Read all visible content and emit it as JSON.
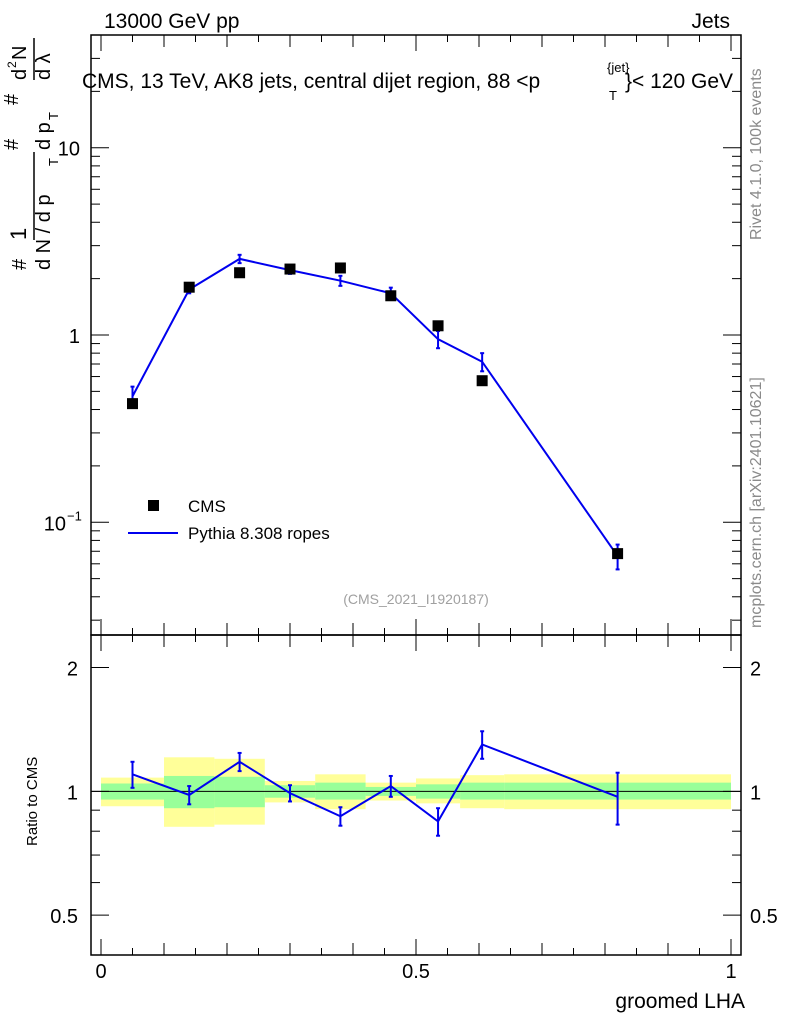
{
  "header": {
    "energy": "13000 GeV pp",
    "category": "Jets"
  },
  "side_labels": {
    "rivet": "Rivet 4.1.0,  100k events",
    "mcplots": "mcplots.cern.ch [arXiv:2401.10621]"
  },
  "chart_data": {
    "type": "line",
    "title": "CMS, 13 TeV, AK8 jets, central dijet region, 88 < p_T^{jet} < 120 GeV",
    "title_parts": {
      "main": "CMS, 13 TeV, AK8 jets, central dijet region, 88 <p",
      "sup": "{jet}",
      "sub": "T",
      "tail": "}< 120 GeV"
    },
    "analysis_id": "(CMS_2021_I1920187)",
    "xlabel": "groomed LHA",
    "ylabel": "1/dN/dp_T  d²N/dp_T dλ",
    "ylabel_parts": {
      "a": "#",
      "b": "1",
      "c": "d N / d p",
      "d": "T",
      "e": "#",
      "f": "d p",
      "g": "T",
      "h": "#",
      "i": "d",
      "j": "2",
      "k": "N",
      "l": "d λ"
    },
    "xlim": [
      0,
      1
    ],
    "ylim": [
      0.025,
      40
    ],
    "yscale": "log",
    "x_ticks": [
      {
        "value": 0,
        "label": "0"
      },
      {
        "value": 0.5,
        "label": "0.5"
      },
      {
        "value": 1,
        "label": "1"
      }
    ],
    "y_ticks": [
      {
        "value": 0.1,
        "label": "10",
        "exp": "−1"
      },
      {
        "value": 1,
        "label": "1",
        "exp": ""
      },
      {
        "value": 10,
        "label": "10",
        "exp": ""
      }
    ],
    "legend": {
      "placement": "lower-left",
      "entries": [
        {
          "name": "CMS",
          "marker": "square"
        },
        {
          "name": "Pythia 8.308 ropes",
          "marker": "line"
        }
      ]
    },
    "data_series": {
      "name": "CMS",
      "color": "#000000",
      "points": [
        {
          "x": 0.05,
          "y": 0.43
        },
        {
          "x": 0.14,
          "y": 1.8
        },
        {
          "x": 0.22,
          "y": 2.15
        },
        {
          "x": 0.3,
          "y": 2.25
        },
        {
          "x": 0.38,
          "y": 2.28
        },
        {
          "x": 0.46,
          "y": 1.62
        },
        {
          "x": 0.535,
          "y": 1.12
        },
        {
          "x": 0.605,
          "y": 0.57
        },
        {
          "x": 0.82,
          "y": 0.068
        }
      ]
    },
    "mc_series": {
      "name": "Pythia 8.308 ropes",
      "color": "#0000ee",
      "points": [
        {
          "x": 0.05,
          "y": 0.47,
          "err": 0.06
        },
        {
          "x": 0.14,
          "y": 1.75,
          "err": 0.08
        },
        {
          "x": 0.22,
          "y": 2.55,
          "err": 0.13
        },
        {
          "x": 0.3,
          "y": 2.22,
          "err": 0.1
        },
        {
          "x": 0.38,
          "y": 1.95,
          "err": 0.12
        },
        {
          "x": 0.46,
          "y": 1.67,
          "err": 0.12
        },
        {
          "x": 0.535,
          "y": 0.95,
          "err": 0.1
        },
        {
          "x": 0.605,
          "y": 0.72,
          "err": 0.08
        },
        {
          "x": 0.82,
          "y": 0.066,
          "err": 0.01
        }
      ]
    },
    "ratio": {
      "ylabel": "Ratio to CMS",
      "ylim": [
        0.4,
        2.4
      ],
      "yscale": "log",
      "y_ticks": [
        {
          "value": 0.5,
          "label": "0.5"
        },
        {
          "value": 1,
          "label": "1"
        },
        {
          "value": 2,
          "label": "2"
        }
      ],
      "bands": [
        {
          "x0": 0.0,
          "x1": 0.1,
          "yellow": [
            0.92,
            1.08
          ],
          "green": [
            0.955,
            1.045
          ]
        },
        {
          "x0": 0.1,
          "x1": 0.18,
          "yellow": [
            0.82,
            1.21
          ],
          "green": [
            0.91,
            1.09
          ]
        },
        {
          "x0": 0.18,
          "x1": 0.26,
          "yellow": [
            0.83,
            1.2
          ],
          "green": [
            0.915,
            1.085
          ]
        },
        {
          "x0": 0.26,
          "x1": 0.34,
          "yellow": [
            0.94,
            1.06
          ],
          "green": [
            0.965,
            1.035
          ]
        },
        {
          "x0": 0.34,
          "x1": 0.42,
          "yellow": [
            0.905,
            1.1
          ],
          "green": [
            0.955,
            1.05
          ]
        },
        {
          "x0": 0.42,
          "x1": 0.5,
          "yellow": [
            0.95,
            1.05
          ],
          "green": [
            0.975,
            1.025
          ]
        },
        {
          "x0": 0.5,
          "x1": 0.57,
          "yellow": [
            0.935,
            1.075
          ],
          "green": [
            0.96,
            1.04
          ]
        },
        {
          "x0": 0.57,
          "x1": 0.64,
          "yellow": [
            0.91,
            1.095
          ],
          "green": [
            0.955,
            1.05
          ]
        },
        {
          "x0": 0.64,
          "x1": 1.0,
          "yellow": [
            0.905,
            1.1
          ],
          "green": [
            0.955,
            1.05
          ]
        }
      ],
      "points": [
        {
          "x": 0.05,
          "y": 1.1,
          "err": 0.08
        },
        {
          "x": 0.14,
          "y": 0.98,
          "err": 0.05
        },
        {
          "x": 0.22,
          "y": 1.18,
          "err": 0.06
        },
        {
          "x": 0.3,
          "y": 0.99,
          "err": 0.045
        },
        {
          "x": 0.38,
          "y": 0.87,
          "err": 0.045
        },
        {
          "x": 0.46,
          "y": 1.03,
          "err": 0.06
        },
        {
          "x": 0.535,
          "y": 0.845,
          "err": 0.065
        },
        {
          "x": 0.605,
          "y": 1.3,
          "err": 0.1
        },
        {
          "x": 0.82,
          "y": 0.97,
          "err": 0.14
        }
      ]
    }
  }
}
